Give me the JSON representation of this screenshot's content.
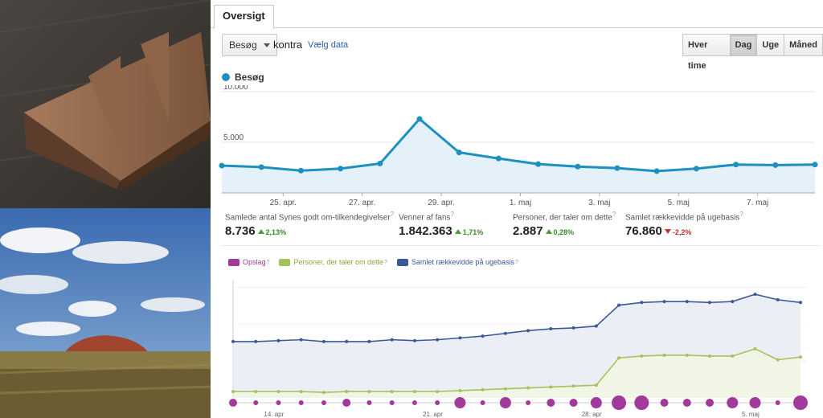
{
  "tabs": {
    "overview": "Oversigt"
  },
  "toolbar": {
    "metric_select": "Besøg",
    "compare_label": "kontra",
    "choose_data_link": "Vælg data",
    "ranges": [
      "Hver time",
      "Dag",
      "Uge",
      "Måned"
    ],
    "active_range": "Dag"
  },
  "visits_chart": {
    "legend_label": "Besøg",
    "color": "#1e90c0"
  },
  "stats": [
    {
      "label": "Samlede antal Synes godt om-tilkendegivelser",
      "value": "8.736",
      "change": "2,13%",
      "direction": "up"
    },
    {
      "label": "Venner af fans",
      "value": "1.842.363",
      "change": "1,71%",
      "direction": "up"
    },
    {
      "label": "Personer, der taler om dette",
      "value": "2.887",
      "change": "0,28%",
      "direction": "up"
    },
    {
      "label": "Samlet rækkevidde på ugebasis",
      "value": "76.860",
      "change": "-2,2%",
      "direction": "down"
    }
  ],
  "legend2": [
    {
      "label": "Opslag",
      "color": "#a23a9b"
    },
    {
      "label": "Personer, der taler om dette",
      "color": "#a6c25e"
    },
    {
      "label": "Samlet rækkevidde på ugebasis",
      "color": "#3b5998"
    }
  ],
  "help_marker": "?",
  "photos": [
    {
      "subject": "chocolate-bar"
    },
    {
      "subject": "uluru-landscape"
    }
  ],
  "chart_data": [
    {
      "type": "area",
      "series": [
        {
          "name": "Besøg",
          "values": [
            2700,
            2550,
            2200,
            2400,
            2900,
            7300,
            4000,
            3400,
            2850,
            2600,
            2450,
            2150,
            2400,
            2800,
            2750,
            2800
          ]
        }
      ],
      "x_ticks": [
        "25. apr.",
        "27. apr.",
        "29. apr.",
        "1. maj",
        "3. maj",
        "5. maj",
        "7. maj"
      ],
      "y_ticks": [
        "5.000",
        "10.000"
      ],
      "ylim": [
        0,
        10000
      ],
      "grid": true
    },
    {
      "type": "line",
      "series": [
        {
          "name": "Samlet rækkevidde på ugebasis",
          "values": [
            31,
            31,
            31.5,
            32,
            31,
            31,
            31,
            32,
            31.5,
            32,
            33,
            34,
            35.5,
            37,
            38,
            38.5,
            39.5,
            51,
            52.5,
            53,
            53,
            52.5,
            53,
            57,
            54,
            52.5
          ]
        },
        {
          "name": "Personer, der taler om dette",
          "values": [
            3.5,
            3.5,
            3.5,
            3.5,
            3,
            3.5,
            3.5,
            3.5,
            3.5,
            3.5,
            4,
            4.5,
            5,
            5.5,
            6,
            6.5,
            7,
            22,
            23,
            23.5,
            23.5,
            23,
            23,
            27,
            21,
            22.5
          ]
        },
        {
          "name": "Opslag",
          "values": [
            1,
            0,
            0,
            0,
            0,
            1,
            0,
            0,
            0,
            0,
            2,
            0,
            2,
            0,
            1,
            1,
            2,
            3,
            3,
            1,
            1,
            1,
            2,
            2,
            0,
            3
          ]
        }
      ],
      "x_ticks": [
        "14. apr",
        "21. apr",
        "28. apr",
        "5. maj"
      ],
      "grid": true
    }
  ]
}
